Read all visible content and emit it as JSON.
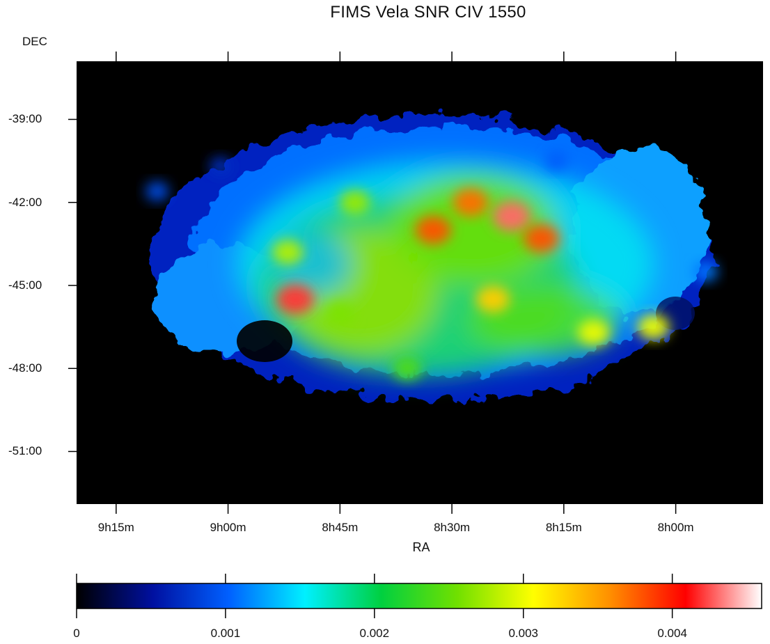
{
  "chart_data": {
    "type": "heatmap",
    "title": "FIMS Vela SNR CIV 1550",
    "xlabel": "RA",
    "ylabel": "DEC",
    "x_ticks": [
      "9h15m",
      "9h00m",
      "8h45m",
      "8h30m",
      "8h15m",
      "8h00m"
    ],
    "x_tick_values_minutes": [
      555,
      540,
      525,
      510,
      495,
      480
    ],
    "xlim_minutes": [
      560.3,
      468.3
    ],
    "y_ticks": [
      "-39:00",
      "-42:00",
      "-45:00",
      "-48:00",
      "-51:00"
    ],
    "y_tick_values_deg": [
      -39,
      -42,
      -45,
      -48,
      -51
    ],
    "ylim_deg": [
      -52.9,
      -36.9
    ],
    "colorbar": {
      "ticks": [
        "0",
        "0.001",
        "0.002",
        "0.003",
        "0.004"
      ],
      "tick_values": [
        0,
        0.001,
        0.002,
        0.003,
        0.004
      ],
      "range": [
        0,
        0.0046
      ],
      "colormap": [
        "#000000",
        "#0010a0",
        "#0060ff",
        "#00f0ff",
        "#00d040",
        "#70e000",
        "#ffff00",
        "#ff9000",
        "#ff0000",
        "#ffffff"
      ]
    },
    "background_color": "#000000",
    "hotspots": [
      {
        "ra_min": 549.5,
        "dec": -41.6,
        "value": 0.0009
      },
      {
        "ra_min": 541.0,
        "dec": -40.7,
        "value": 0.0007
      },
      {
        "ra_min": 531.0,
        "dec": -45.5,
        "value": 0.0042
      },
      {
        "ra_min": 532.0,
        "dec": -43.8,
        "value": 0.0028
      },
      {
        "ra_min": 523.0,
        "dec": -42.0,
        "value": 0.0027
      },
      {
        "ra_min": 512.5,
        "dec": -43.0,
        "value": 0.0038
      },
      {
        "ra_min": 507.5,
        "dec": -42.0,
        "value": 0.0037
      },
      {
        "ra_min": 502.0,
        "dec": -42.5,
        "value": 0.0043
      },
      {
        "ra_min": 498.0,
        "dec": -43.3,
        "value": 0.0038
      },
      {
        "ra_min": 504.5,
        "dec": -45.5,
        "value": 0.0033
      },
      {
        "ra_min": 525.0,
        "dec": -46.0,
        "value": 0.0026
      },
      {
        "ra_min": 491.0,
        "dec": -46.7,
        "value": 0.003
      },
      {
        "ra_min": 483.0,
        "dec": -46.5,
        "value": 0.003
      },
      {
        "ra_min": 516.0,
        "dec": -48.0,
        "value": 0.0024
      },
      {
        "ra_min": 496.0,
        "dec": -40.5,
        "value": 0.001
      },
      {
        "ra_min": 476.0,
        "dec": -44.5,
        "value": 0.0011
      }
    ]
  }
}
